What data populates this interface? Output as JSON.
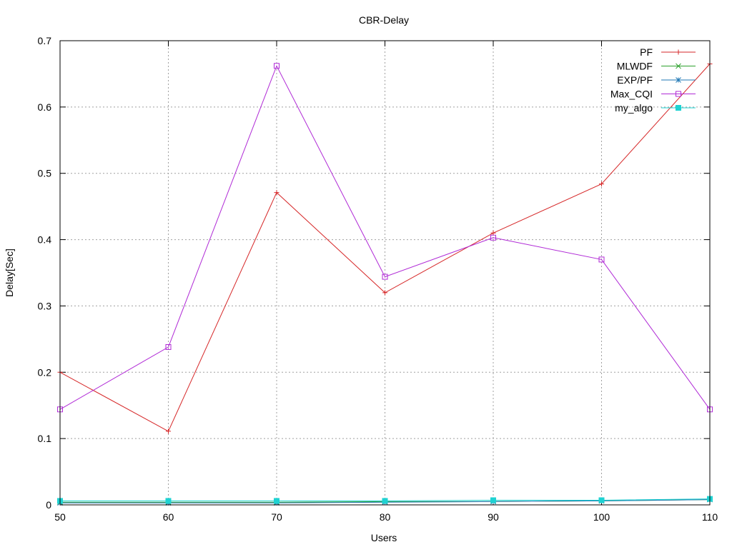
{
  "chart_data": {
    "type": "line",
    "title": "CBR-Delay",
    "xlabel": "Users",
    "ylabel": "Delay[Sec]",
    "x": [
      50,
      60,
      70,
      80,
      90,
      100,
      110
    ],
    "xticks": [
      "50",
      "60",
      "70",
      "80",
      "90",
      "100",
      "110"
    ],
    "yticks": [
      "0",
      "0.1",
      "0.2",
      "0.3",
      "0.4",
      "0.5",
      "0.6",
      "0.7"
    ],
    "xlim": [
      50,
      110
    ],
    "ylim": [
      0,
      0.7
    ],
    "grid": true,
    "legend_position": "top-right",
    "series": [
      {
        "name": "PF",
        "color": "#d62728",
        "marker": "plus",
        "values": [
          0.2,
          0.111,
          0.471,
          0.32,
          0.41,
          0.484,
          0.665
        ]
      },
      {
        "name": "MLWDF",
        "color": "#2ca02c",
        "marker": "cross",
        "values": [
          0.004,
          0.004,
          0.004,
          0.005,
          0.005,
          0.006,
          0.008
        ]
      },
      {
        "name": "EXP/PF",
        "color": "#1f77b4",
        "marker": "star",
        "values": [
          0.003,
          0.003,
          0.003,
          0.004,
          0.005,
          0.006,
          0.008
        ]
      },
      {
        "name": "Max_CQI",
        "color": "#b02ad6",
        "marker": "open-square",
        "values": [
          0.144,
          0.238,
          0.662,
          0.344,
          0.403,
          0.37,
          0.144
        ]
      },
      {
        "name": "my_algo",
        "color": "#1ed2d2",
        "marker": "filled-square",
        "values": [
          0.006,
          0.006,
          0.006,
          0.006,
          0.007,
          0.007,
          0.009
        ]
      }
    ]
  }
}
